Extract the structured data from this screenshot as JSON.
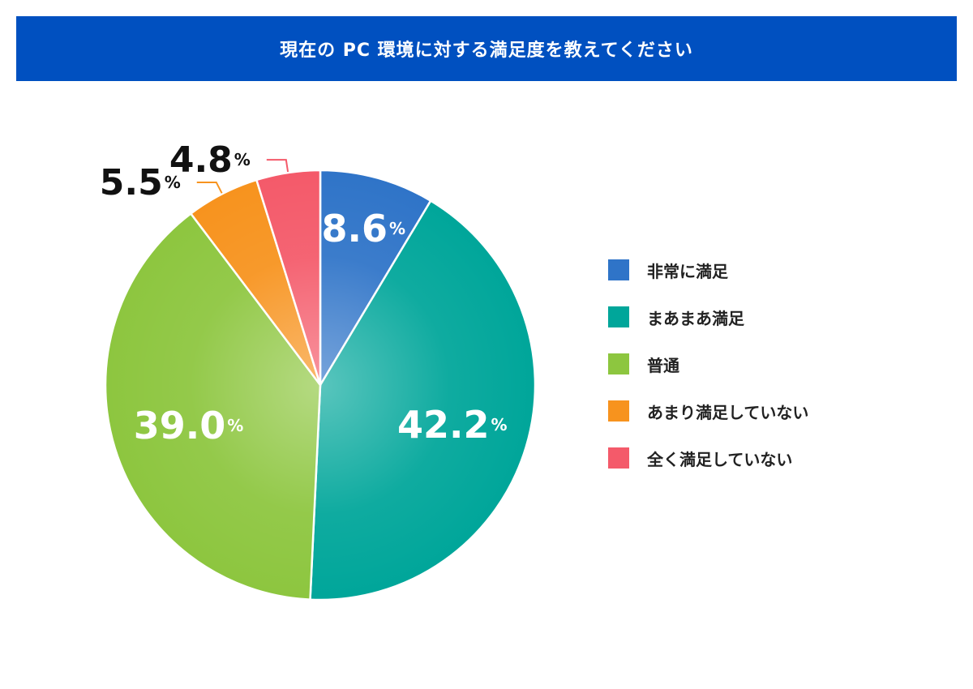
{
  "chart_data": {
    "type": "pie",
    "title": "現在の PC 環境に対する満足度を教えてください",
    "unit": "%",
    "categories": [
      "非常に満足",
      "まあまあ満足",
      "普通",
      "あまり満足していない",
      "全く満足していない"
    ],
    "values": [
      8.6,
      42.2,
      39.0,
      5.5,
      4.8
    ],
    "value_labels": [
      "8.6",
      "42.2",
      "39.0",
      "5.5",
      "4.8"
    ],
    "colors": [
      "#2f74c8",
      "#00a69a",
      "#8dc63f",
      "#f7931e",
      "#f45a6a"
    ],
    "start_angle": "12 o'clock",
    "direction": "clockwise",
    "legend_position": "right"
  }
}
